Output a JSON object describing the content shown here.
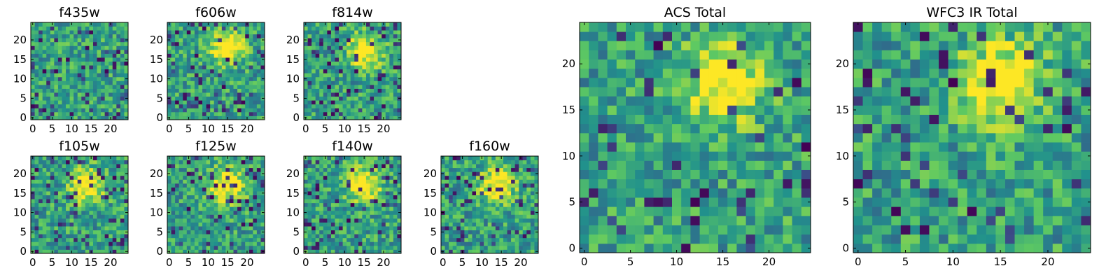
{
  "palette": [
    "#440154",
    "#3b528b",
    "#21918c",
    "#5ec962",
    "#fde725"
  ],
  "chart_data": [
    {
      "type": "heatmap",
      "title": "f435w",
      "xticks": [
        "0",
        "5",
        "10",
        "15",
        "20"
      ],
      "yticks": [
        "0",
        "5",
        "10",
        "15",
        "20"
      ],
      "xlim": [
        -0.5,
        24.5
      ],
      "ylim": [
        -0.5,
        24.5
      ],
      "grid": false,
      "cmap": "viridis",
      "features": {
        "blob": null,
        "dark_pixel_fraction": 0.1
      }
    },
    {
      "type": "heatmap",
      "title": "f606w",
      "xticks": [
        "0",
        "5",
        "10",
        "15",
        "20"
      ],
      "yticks": [
        "0",
        "5",
        "10",
        "15",
        "20"
      ],
      "xlim": [
        -0.5,
        24.5
      ],
      "ylim": [
        -0.5,
        24.5
      ],
      "grid": false,
      "cmap": "viridis",
      "features": {
        "blob": [
          15,
          18
        ],
        "dark_pixel_fraction": 0.12
      }
    },
    {
      "type": "heatmap",
      "title": "f814w",
      "xticks": [
        "0",
        "5",
        "10",
        "15",
        "20"
      ],
      "yticks": [
        "0",
        "5",
        "10",
        "15",
        "20"
      ],
      "xlim": [
        -0.5,
        24.5
      ],
      "ylim": [
        -0.5,
        24.5
      ],
      "grid": false,
      "cmap": "viridis",
      "features": {
        "blob": [
          15,
          17
        ],
        "dark_pixel_fraction": 0.12
      }
    },
    {
      "type": "heatmap",
      "title": "f105w",
      "xticks": [
        "0",
        "5",
        "10",
        "15",
        "20"
      ],
      "yticks": [
        "0",
        "5",
        "10",
        "15",
        "20"
      ],
      "xlim": [
        -0.5,
        24.5
      ],
      "ylim": [
        -0.5,
        24.5
      ],
      "grid": false,
      "cmap": "viridis",
      "features": {
        "blob": [
          14,
          17
        ],
        "dark_pixel_fraction": 0.1
      }
    },
    {
      "type": "heatmap",
      "title": "f125w",
      "xticks": [
        "0",
        "5",
        "10",
        "15",
        "20"
      ],
      "yticks": [
        "0",
        "5",
        "10",
        "15",
        "20"
      ],
      "xlim": [
        -0.5,
        24.5
      ],
      "ylim": [
        -0.5,
        24.5
      ],
      "grid": false,
      "cmap": "viridis",
      "features": {
        "blob": [
          15,
          17
        ],
        "dark_pixel_fraction": 0.1
      }
    },
    {
      "type": "heatmap",
      "title": "f140w",
      "xticks": [
        "0",
        "5",
        "10",
        "15",
        "20"
      ],
      "yticks": [
        "0",
        "5",
        "10",
        "15",
        "20"
      ],
      "xlim": [
        -0.5,
        24.5
      ],
      "ylim": [
        -0.5,
        24.5
      ],
      "grid": false,
      "cmap": "viridis",
      "features": {
        "blob": [
          15,
          17
        ],
        "dark_pixel_fraction": 0.1
      }
    },
    {
      "type": "heatmap",
      "title": "f160w",
      "xticks": [
        "0",
        "5",
        "10",
        "15",
        "20"
      ],
      "yticks": [
        "0",
        "5",
        "10",
        "15",
        "20"
      ],
      "xlim": [
        -0.5,
        24.5
      ],
      "ylim": [
        -0.5,
        24.5
      ],
      "grid": false,
      "cmap": "viridis",
      "features": {
        "blob": [
          14,
          17
        ],
        "dark_pixel_fraction": 0.1
      }
    },
    {
      "type": "heatmap",
      "title": "ACS Total",
      "xticks": [
        "0",
        "5",
        "10",
        "15",
        "20"
      ],
      "yticks": [
        "0",
        "5",
        "10",
        "15",
        "20"
      ],
      "xlim": [
        -0.5,
        24.5
      ],
      "ylim": [
        -0.5,
        24.5
      ],
      "grid": false,
      "cmap": "viridis",
      "features": {
        "blob": [
          15,
          18
        ],
        "dark_pixel_fraction": 0.05
      }
    },
    {
      "type": "heatmap",
      "title": "WFC3 IR Total",
      "xticks": [
        "0",
        "5",
        "10",
        "15",
        "20"
      ],
      "yticks": [
        "0",
        "5",
        "10",
        "15",
        "20"
      ],
      "xlim": [
        -0.5,
        24.5
      ],
      "ylim": [
        -0.5,
        24.5
      ],
      "grid": false,
      "cmap": "viridis",
      "features": {
        "blob": [
          15,
          18
        ],
        "dark_pixel_fraction": 0.07
      }
    }
  ]
}
